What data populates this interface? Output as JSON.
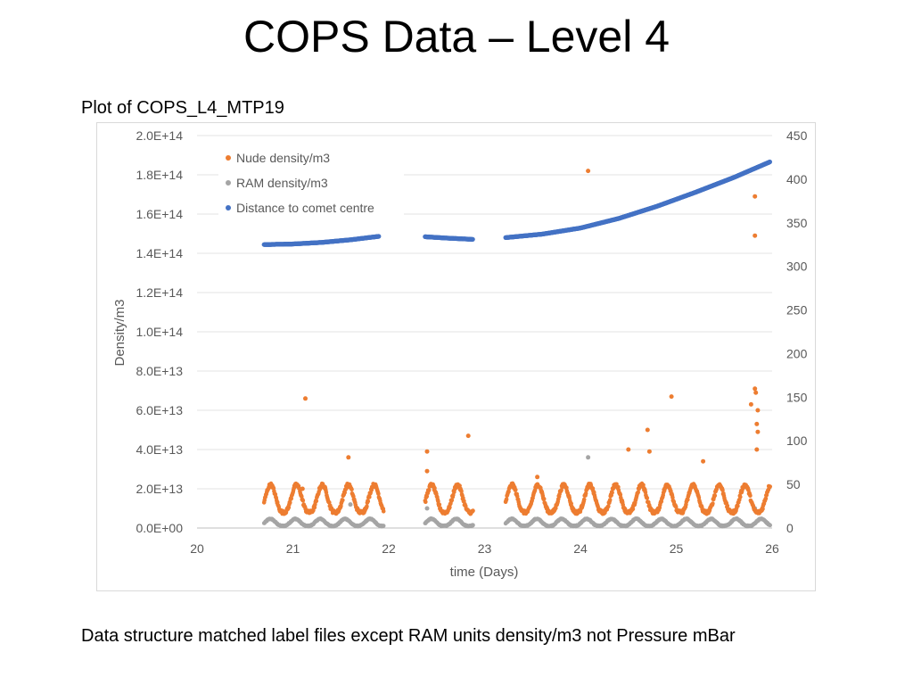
{
  "slide": {
    "title": "COPS Data – Level 4",
    "caption": "Plot of COPS_L4_MTP19",
    "footnote": "Data structure matched label files except RAM units density/m3 not Pressure mBar"
  },
  "chart_data": {
    "type": "scatter",
    "title": "",
    "xlabel": "time (Days)",
    "ylabel": "Density/m3",
    "y2label": "",
    "xlim": [
      20,
      26
    ],
    "ylim": [
      0,
      200000000000000.0
    ],
    "y2lim": [
      0,
      450
    ],
    "x_ticks": [
      "20",
      "21",
      "22",
      "23",
      "24",
      "25",
      "26"
    ],
    "y_ticks": [
      "0.0E+00",
      "2.0E+13",
      "4.0E+13",
      "6.0E+13",
      "8.0E+13",
      "1.0E+14",
      "1.2E+14",
      "1.4E+14",
      "1.6E+14",
      "1.8E+14",
      "2.0E+14"
    ],
    "y2_ticks": [
      "0",
      "50",
      "100",
      "150",
      "200",
      "250",
      "300",
      "350",
      "400",
      "450"
    ],
    "grid": true,
    "legend_position": "top-left",
    "colors": {
      "nude": "#ed7d31",
      "ram": "#a5a5a5",
      "distance": "#4472c4"
    },
    "series": [
      {
        "name": "Nude density/m3",
        "axis": "left",
        "color": "#ed7d31",
        "segments": [
          [
            20.7,
            21.95
          ],
          [
            22.38,
            22.88
          ],
          [
            23.22,
            25.98
          ]
        ],
        "base_range": [
          8000000000000.0,
          22000000000000.0
        ],
        "outliers": [
          [
            21.13,
            66000000000000.0
          ],
          [
            21.58,
            36000000000000.0
          ],
          [
            21.1,
            20000000000000.0
          ],
          [
            22.4,
            39000000000000.0
          ],
          [
            22.4,
            29000000000000.0
          ],
          [
            22.83,
            47000000000000.0
          ],
          [
            23.55,
            26000000000000.0
          ],
          [
            24.08,
            182000000000000.0
          ],
          [
            24.5,
            40000000000000.0
          ],
          [
            24.7,
            50000000000000.0
          ],
          [
            24.72,
            39000000000000.0
          ],
          [
            24.95,
            67000000000000.0
          ],
          [
            25.28,
            34000000000000.0
          ],
          [
            25.82,
            169000000000000.0
          ],
          [
            25.82,
            149000000000000.0
          ],
          [
            25.78,
            63000000000000.0
          ],
          [
            25.82,
            71000000000000.0
          ],
          [
            25.83,
            69000000000000.0
          ],
          [
            25.85,
            60000000000000.0
          ],
          [
            25.84,
            53000000000000.0
          ],
          [
            25.85,
            49000000000000.0
          ],
          [
            25.84,
            40000000000000.0
          ]
        ]
      },
      {
        "name": "RAM density/m3",
        "axis": "left",
        "color": "#a5a5a5",
        "segments": [
          [
            20.7,
            21.95
          ],
          [
            22.38,
            22.88
          ],
          [
            23.22,
            25.98
          ]
        ],
        "base_range": [
          1000000000000.0,
          5000000000000.0
        ],
        "outliers": [
          [
            24.08,
            36000000000000.0
          ],
          [
            21.6,
            12000000000000.0
          ],
          [
            22.4,
            10000000000000.0
          ],
          [
            25.82,
            10000000000000.0
          ],
          [
            25.85,
            8000000000000.0
          ]
        ]
      },
      {
        "name": "Distance to comet centre",
        "axis": "right",
        "color": "#4472c4",
        "segments": [
          {
            "x": [
              20.7,
              21.0,
              21.3,
              21.6,
              21.9
            ],
            "y": [
              325,
              325.7,
              327.5,
              330.5,
              334.5
            ]
          },
          {
            "x": [
              22.38,
              22.6,
              22.88
            ],
            "y": [
              334,
              332.5,
              331
            ]
          },
          {
            "x": [
              23.22,
              23.6,
              24.0,
              24.4,
              24.8,
              25.2,
              25.6,
              25.98
            ],
            "y": [
              333,
              337,
              344,
              355,
              369,
              385,
              402,
              420
            ]
          }
        ]
      }
    ]
  }
}
